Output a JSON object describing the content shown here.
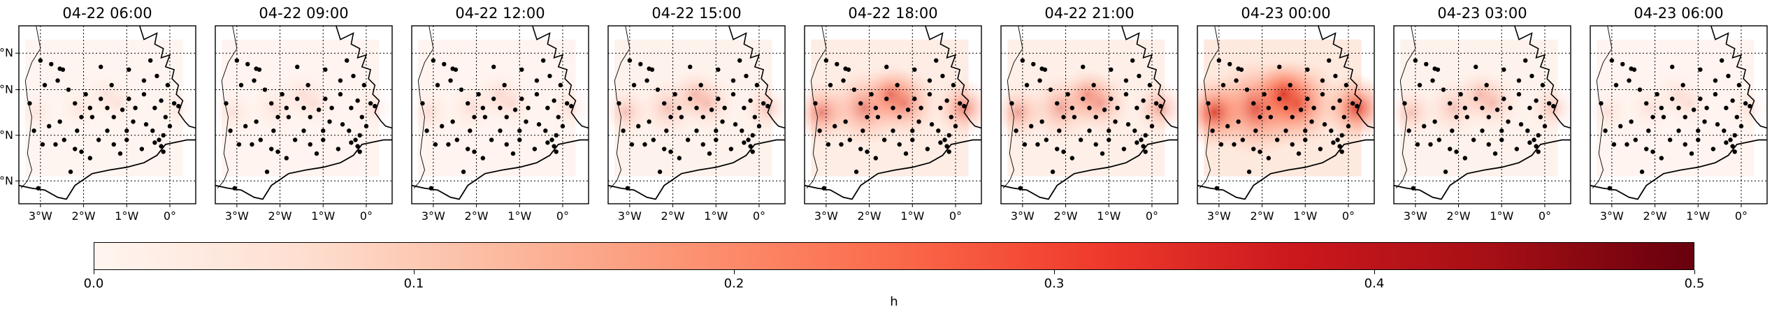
{
  "figure": {
    "panels": [
      {
        "title": "04-22 06:00",
        "intensity": 0.08
      },
      {
        "title": "04-22 09:00",
        "intensity": 0.1
      },
      {
        "title": "04-22 12:00",
        "intensity": 0.12
      },
      {
        "title": "04-22 15:00",
        "intensity": 0.25
      },
      {
        "title": "04-22 18:00",
        "intensity": 0.55
      },
      {
        "title": "04-22 21:00",
        "intensity": 0.4
      },
      {
        "title": "04-23 00:00",
        "intensity": 0.85
      },
      {
        "title": "04-23 03:00",
        "intensity": 0.25
      },
      {
        "title": "04-23 06:00",
        "intensity": 0.1
      }
    ],
    "lon_ticks": [
      "3°W",
      "2°W",
      "1°W",
      "0°"
    ],
    "lat_ticks": [
      "°N",
      "°N",
      "°N",
      "°N"
    ]
  },
  "colorbar": {
    "label": "h",
    "ticks": [
      "0.0",
      "0.1",
      "0.2",
      "0.3",
      "0.4",
      "0.5"
    ],
    "range": [
      0.0,
      0.5
    ],
    "colormap": "Reds",
    "colors": [
      "#fff5f0",
      "#fee0d2",
      "#fcbba1",
      "#fc9272",
      "#fb6a4a",
      "#ef3b2c",
      "#cb181d",
      "#a50f15",
      "#67000d"
    ]
  },
  "stations": [
    [
      -3.0,
      51.82
    ],
    [
      -2.75,
      51.78
    ],
    [
      -2.55,
      51.73
    ],
    [
      -2.48,
      51.72
    ],
    [
      -2.9,
      51.55
    ],
    [
      -3.25,
      51.35
    ],
    [
      -2.35,
      51.5
    ],
    [
      -2.2,
      51.35
    ],
    [
      -2.05,
      51.2
    ],
    [
      -1.85,
      51.3
    ],
    [
      -1.6,
      51.4
    ],
    [
      -1.45,
      51.3
    ],
    [
      -1.3,
      51.2
    ],
    [
      -1.1,
      51.28
    ],
    [
      -0.95,
      51.4
    ],
    [
      -0.8,
      51.3
    ],
    [
      -0.6,
      51.45
    ],
    [
      -0.35,
      51.3
    ],
    [
      -0.2,
      51.38
    ],
    [
      0.1,
      51.35
    ],
    [
      0.2,
      51.32
    ],
    [
      -0.05,
      51.55
    ],
    [
      -0.4,
      51.05
    ],
    [
      -0.6,
      51.6
    ],
    [
      -1.6,
      51.75
    ],
    [
      -0.95,
      51.72
    ],
    [
      -0.45,
      51.82
    ],
    [
      -0.1,
      51.2
    ],
    [
      0.0,
      51.1
    ],
    [
      -0.15,
      51.0
    ],
    [
      -0.25,
      50.95
    ],
    [
      -0.35,
      50.92
    ],
    [
      -1.8,
      51.2
    ],
    [
      -2.15,
      51.05
    ],
    [
      -2.45,
      50.95
    ],
    [
      -2.65,
      50.9
    ],
    [
      -2.95,
      50.9
    ],
    [
      -1.0,
      51.05
    ],
    [
      -1.3,
      50.9
    ],
    [
      -1.15,
      50.8
    ],
    [
      -0.65,
      50.85
    ],
    [
      -1.45,
      51.05
    ],
    [
      -1.65,
      50.95
    ],
    [
      -2.05,
      50.82
    ],
    [
      -1.85,
      50.75
    ],
    [
      -2.2,
      50.85
    ],
    [
      -2.8,
      51.1
    ],
    [
      -3.15,
      51.05
    ],
    [
      -2.55,
      51.15
    ],
    [
      -0.85,
      51.15
    ],
    [
      -0.55,
      51.12
    ],
    [
      -1.95,
      51.45
    ],
    [
      -2.6,
      51.6
    ],
    [
      -3.05,
      50.42
    ],
    [
      -2.3,
      50.6
    ],
    [
      -0.2,
      50.88
    ],
    [
      -0.15,
      50.82
    ],
    [
      -1.0,
      50.95
    ],
    [
      -0.3,
      51.65
    ],
    [
      -1.35,
      51.55
    ]
  ],
  "hotspots": [
    [
      -2.1,
      51.3,
      0.6
    ],
    [
      -1.2,
      51.35,
      0.5
    ],
    [
      -3.1,
      51.25,
      0.35
    ],
    [
      0.2,
      51.3,
      0.3
    ],
    [
      -1.5,
      51.45,
      0.3
    ]
  ]
}
